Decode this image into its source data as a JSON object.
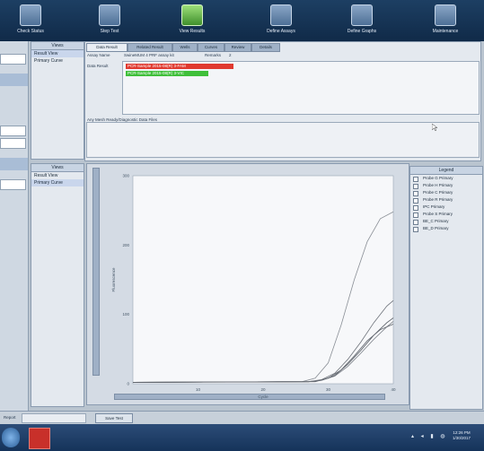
{
  "toolbar": {
    "items": [
      {
        "label": "Check Status",
        "icon": "monitor-icon"
      },
      {
        "label": "Step Test",
        "icon": "step-icon"
      },
      {
        "label": "View Results",
        "icon": "results-icon"
      },
      {
        "label": "Define Assays",
        "icon": "assay-icon"
      },
      {
        "label": "Define Graphs",
        "icon": "graph-icon"
      },
      {
        "label": "Maintenance",
        "icon": "maintenance-icon"
      }
    ]
  },
  "upper_list": {
    "header": "Views",
    "items": [
      "Result View",
      "Primary Curve"
    ],
    "selected": 0
  },
  "tabs": [
    "Data Result",
    "Related Result",
    "Wells",
    "Curves",
    "Review",
    "Details"
  ],
  "assay_row": {
    "label": "Assay Name",
    "value": "SwineMUM 4 PRF assay kit",
    "note_label": "Remarks",
    "note_value": "2"
  },
  "wells": {
    "label": "Data Result",
    "items": [
      {
        "text": "PCR-Sample 2015-08(R) 3-FAM",
        "color": "#e0392f"
      },
      {
        "text": "PCR-Sample 2015-08(R) 3-VIC",
        "color": "#3fbf3a"
      }
    ]
  },
  "comment_label": "Any Mesh Ready/Diagnostic Data Files",
  "lower_list": {
    "header": "Views",
    "items": [
      "Result View",
      "Primary Curve"
    ],
    "selected": 1
  },
  "chart_data": {
    "type": "line",
    "title": "",
    "xlabel": "Cycle",
    "ylabel": "Fluorescence",
    "xlim": [
      0,
      40
    ],
    "ylim": [
      0,
      300
    ],
    "x_ticks": [
      10,
      20,
      30,
      40
    ],
    "y_ticks": [
      0,
      100,
      200,
      300
    ],
    "grid": false,
    "legend_placement": "right panel",
    "series": [
      {
        "x": [
          0,
          26,
          28,
          30,
          32,
          34,
          36,
          38,
          40
        ],
        "y": [
          2,
          3,
          8,
          30,
          85,
          150,
          205,
          238,
          248
        ]
      },
      {
        "x": [
          0,
          27,
          29,
          31,
          33,
          35,
          37,
          39,
          40
        ],
        "y": [
          2,
          3,
          6,
          15,
          35,
          60,
          88,
          112,
          120
        ]
      },
      {
        "x": [
          0,
          27,
          29,
          31,
          33,
          35,
          37,
          39,
          40
        ],
        "y": [
          2,
          3,
          5,
          12,
          28,
          48,
          70,
          88,
          95
        ]
      },
      {
        "x": [
          0,
          27,
          29,
          31,
          33,
          35,
          37,
          39,
          40
        ],
        "y": [
          2,
          3,
          5,
          11,
          25,
          44,
          64,
          82,
          90
        ]
      },
      {
        "x": [
          0,
          28,
          30,
          32,
          34,
          36,
          38,
          40
        ],
        "y": [
          2,
          3,
          8,
          20,
          40,
          62,
          78,
          86
        ]
      }
    ]
  },
  "legend": {
    "header": "Legend",
    "items": [
      "Probe G Primary",
      "Probe H Primary",
      "Probe C Primary",
      "Probe R Primary",
      "IPC Primary",
      "Probe S Primary",
      "BE_C Primary",
      "BE_D Primary"
    ]
  },
  "status": {
    "label": "Report",
    "button": "Save Test"
  },
  "taskbar": {
    "time": "12:26 PM",
    "date": "1/30/2017"
  }
}
